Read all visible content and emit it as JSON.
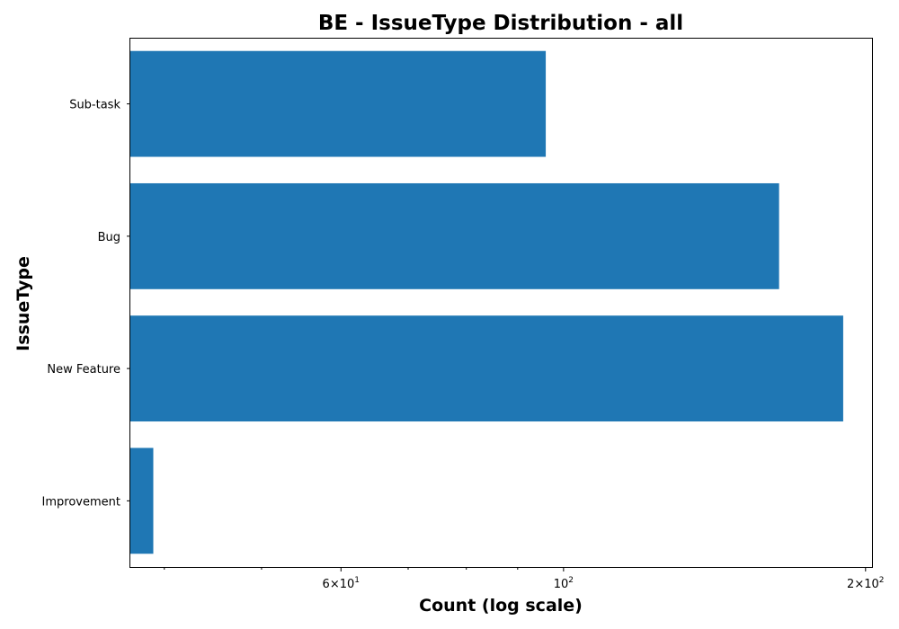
{
  "chart_data": {
    "type": "bar",
    "orientation": "horizontal",
    "title": "BE - IssueType Distribution - all",
    "xlabel": "Count (log scale)",
    "ylabel": "IssueType",
    "xscale": "log",
    "xlim": [
      37,
      203
    ],
    "categories": [
      "Sub-task",
      "Bug",
      "New Feature",
      "Improvement"
    ],
    "values": [
      96,
      164,
      190,
      39
    ],
    "x_major_ticks": [
      {
        "value": 60,
        "mantissa": "6",
        "base": "10",
        "exp": "1"
      },
      {
        "value": 100,
        "mantissa": "",
        "base": "10",
        "exp": "2"
      },
      {
        "value": 200,
        "mantissa": "2",
        "base": "10",
        "exp": "2"
      }
    ],
    "x_minor_ticks": [
      40,
      50,
      70,
      80,
      90
    ],
    "bar_color": "#1f77b4",
    "grid": false,
    "legend": "none"
  }
}
